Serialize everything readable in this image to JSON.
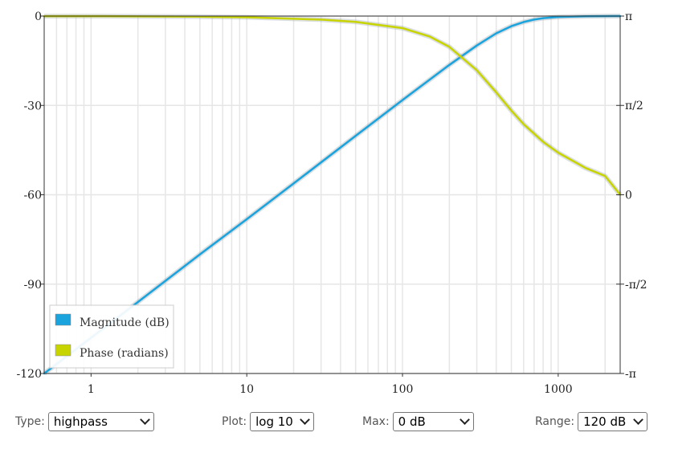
{
  "chart_data": {
    "type": "line",
    "xscale": "log10",
    "xlim": [
      0.5,
      2500
    ],
    "x_ticks": [
      1,
      10,
      100,
      1000
    ],
    "x_tick_labels": [
      "1",
      "10",
      "100",
      "1000"
    ],
    "ylim_left": [
      -120,
      0
    ],
    "y_ticks_left": [
      0,
      -30,
      -60,
      -90,
      -120
    ],
    "y_tick_labels_left": [
      "0",
      "-30",
      "-60",
      "-90",
      "-120"
    ],
    "ylim_right": [
      -3.14159,
      3.14159
    ],
    "y_ticks_right": [
      3.14159,
      1.5708,
      0,
      -1.5708,
      -3.14159
    ],
    "y_tick_labels_right": [
      "π",
      "π/2",
      "0",
      "-π/2",
      "-π"
    ],
    "grid": true,
    "legend_placement": "bottom-left",
    "series": [
      {
        "name": "Magnitude (dB)",
        "axis": "left",
        "color": "#1aa3dd",
        "x": [
          0.5,
          1,
          2,
          5,
          10,
          20,
          50,
          100,
          200,
          300,
          400,
          500,
          600,
          700,
          800,
          1000,
          1500,
          2500
        ],
        "y": [
          -120,
          -108,
          -96,
          -80,
          -68.2,
          -56.2,
          -40.2,
          -28.2,
          -16.4,
          -9.9,
          -5.8,
          -3.4,
          -2.0,
          -1.2,
          -0.7,
          -0.3,
          -0.05,
          0
        ]
      },
      {
        "name": "Phase (radians)",
        "axis": "right",
        "color": "#c8d400",
        "x": [
          0.5,
          1,
          5,
          10,
          30,
          50,
          100,
          150,
          200,
          300,
          400,
          500,
          600,
          800,
          1000,
          1500,
          2000,
          2500
        ],
        "y": [
          3.14,
          3.14,
          3.13,
          3.12,
          3.08,
          3.04,
          2.93,
          2.78,
          2.6,
          2.19,
          1.8,
          1.48,
          1.24,
          0.93,
          0.74,
          0.47,
          0.33,
          0.0
        ]
      }
    ]
  },
  "legend": {
    "items": [
      {
        "label": "Magnitude (dB)",
        "color": "#1aa3dd"
      },
      {
        "label": "Phase (radians)",
        "color": "#c8d400"
      }
    ]
  },
  "controls": {
    "type": {
      "label": "Type:",
      "value": "highpass"
    },
    "plot": {
      "label": "Plot:",
      "value": "log 10"
    },
    "max": {
      "label": "Max:",
      "value": "0 dB"
    },
    "range": {
      "label": "Range:",
      "value": "120 dB"
    }
  }
}
